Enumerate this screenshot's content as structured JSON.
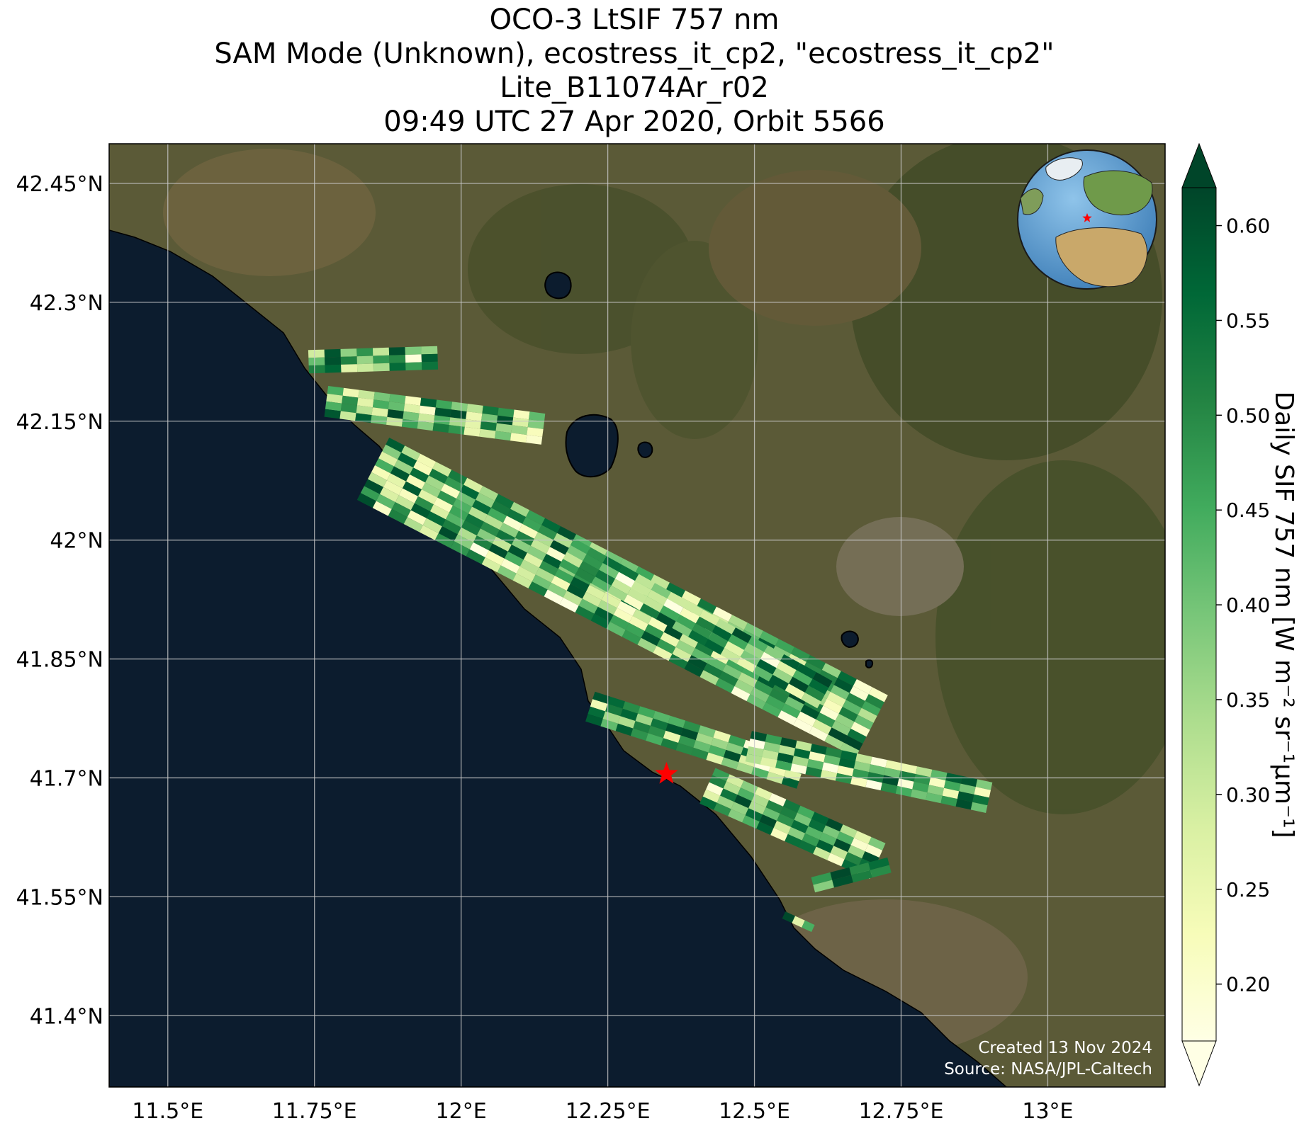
{
  "title_lines": [
    "OCO-3 LtSIF 757 nm",
    "SAM Mode (Unknown), ecostress_it_cp2, \"ecostress_it_cp2\"",
    "Lite_B11074Ar_r02",
    "09:49 UTC 27 Apr 2020, Orbit 5566"
  ],
  "map": {
    "lon_range": [
      11.4,
      13.2
    ],
    "lat_range": [
      41.31,
      42.5
    ],
    "lon_ticks": [
      11.5,
      11.75,
      12.0,
      12.25,
      12.5,
      12.75,
      13.0
    ],
    "lon_tick_labels": [
      "11.5°E",
      "11.75°E",
      "12°E",
      "12.25°E",
      "12.5°E",
      "12.75°E",
      "13°E"
    ],
    "lat_ticks": [
      42.45,
      42.3,
      42.15,
      42.0,
      41.85,
      41.7,
      41.55,
      41.4
    ],
    "lat_tick_labels": [
      "42.45°N",
      "42.3°N",
      "42.15°N",
      "42°N",
      "41.85°N",
      "41.7°N",
      "41.55°N",
      "41.4°N"
    ],
    "gridlines": true,
    "basemap": "satellite imagery",
    "colors": {
      "sea": "#0c1c2e",
      "land": "#5b5a37",
      "grid": "#c8c8c8",
      "target_marker": "#ff0000"
    },
    "target_marker": {
      "lon": 12.35,
      "lat": 41.705,
      "shape": "star"
    },
    "inset_globe": {
      "position": "top-right",
      "marker": "star"
    },
    "credit_lines": [
      "Created 13 Nov 2024",
      "Source: NASA/JPL-Caltech"
    ]
  },
  "colorbar": {
    "label": "Daily SIF 757 nm [W m⁻² sr⁻¹μm⁻¹]",
    "range": [
      0.17,
      0.62
    ],
    "ticks": [
      0.6,
      0.55,
      0.5,
      0.45,
      0.4,
      0.35,
      0.3,
      0.25,
      0.2
    ],
    "tick_labels": [
      "0.60",
      "0.55",
      "0.50",
      "0.45",
      "0.40",
      "0.35",
      "0.30",
      "0.25",
      "0.20"
    ],
    "extend": "both",
    "colormap": "YlGn",
    "stops": [
      "#ffffe5",
      "#f7fcb9",
      "#d9f0a3",
      "#addd8e",
      "#78c679",
      "#41ab5d",
      "#238443",
      "#006837",
      "#004529"
    ]
  },
  "chart_data": {
    "type": "heatmap",
    "variable": "Daily SIF 757 nm",
    "units": "W m⁻² sr⁻¹μm⁻¹",
    "value_range": [
      0.17,
      0.62
    ],
    "swaths": [
      {
        "start": [
          11.74,
          42.225
        ],
        "end": [
          11.96,
          42.23
        ],
        "rows": 3,
        "cols": 8,
        "seed": 3
      },
      {
        "start": [
          11.77,
          42.175
        ],
        "end": [
          12.14,
          42.14
        ],
        "rows": 4,
        "cols": 14,
        "seed": 7
      },
      {
        "start": [
          11.85,
          42.09
        ],
        "end": [
          12.7,
          41.765
        ],
        "rows": 9,
        "cols": 32,
        "seed": 11
      },
      {
        "start": [
          12.18,
          41.985
        ],
        "end": [
          12.62,
          41.805
        ],
        "rows": 4,
        "cols": 16,
        "seed": 19
      },
      {
        "start": [
          12.22,
          41.79
        ],
        "end": [
          12.58,
          41.705
        ],
        "rows": 4,
        "cols": 14,
        "seed": 23
      },
      {
        "start": [
          12.49,
          41.74
        ],
        "end": [
          12.9,
          41.675
        ],
        "rows": 4,
        "cols": 16,
        "seed": 29
      },
      {
        "start": [
          12.42,
          41.69
        ],
        "end": [
          12.71,
          41.595
        ],
        "rows": 5,
        "cols": 12,
        "seed": 31
      },
      {
        "start": [
          12.6,
          41.565
        ],
        "end": [
          12.73,
          41.59
        ],
        "rows": 2,
        "cols": 4,
        "seed": 37
      },
      {
        "start": [
          12.55,
          41.527
        ],
        "end": [
          12.6,
          41.51
        ],
        "rows": 1,
        "cols": 3,
        "seed": 41
      }
    ]
  }
}
